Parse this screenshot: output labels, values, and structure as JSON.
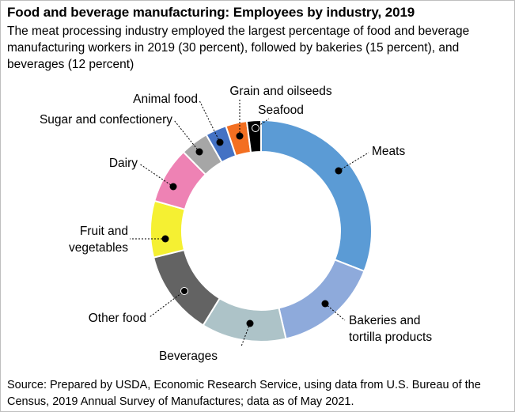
{
  "title": "Food and beverage manufacturing: Employees by industry, 2019",
  "subtitle": "The meat processing industry employed the largest percentage of food and beverage manufacturing workers in 2019 (30 percent), followed by bakeries (15 percent), and beverages (12 percent)",
  "source": "Source: Prepared by USDA, Economic Research Service, using data from U.S. Bureau of the Census, 2019 Annual Survey of Manufactures; data as of May 2021.",
  "chart_data": {
    "type": "pie",
    "style": "donut",
    "unit": "percent",
    "slices": [
      {
        "label": "Meats",
        "value": 30,
        "color": "#5b9bd5",
        "label_lines": [
          "Meats"
        ]
      },
      {
        "label": "Bakeries and tortilla products",
        "value": 15,
        "color": "#8eaadb",
        "label_lines": [
          "Bakeries and",
          "tortilla products"
        ]
      },
      {
        "label": "Beverages",
        "value": 12,
        "color": "#adc3c8",
        "label_lines": [
          "Beverages"
        ]
      },
      {
        "label": "Other food",
        "value": 12,
        "color": "#636363",
        "label_lines": [
          "Other food"
        ]
      },
      {
        "label": "Fruit and vegetables",
        "value": 8,
        "color": "#f5f032",
        "label_lines": [
          "Fruit and",
          "vegetables"
        ]
      },
      {
        "label": "Dairy",
        "value": 8,
        "color": "#ee82b4",
        "label_lines": [
          "Dairy"
        ]
      },
      {
        "label": "Sugar and confectionery",
        "value": 4,
        "color": "#a6a6a6",
        "label_lines": [
          "Sugar and confectionery"
        ]
      },
      {
        "label": "Animal food",
        "value": 3,
        "color": "#4472c4",
        "label_lines": [
          "Animal food"
        ]
      },
      {
        "label": "Grain and oilseeds",
        "value": 3,
        "color": "#f36f21",
        "label_lines": [
          "Grain and oilseeds"
        ]
      },
      {
        "label": "Seafood",
        "value": 2,
        "color": "#000000",
        "label_lines": [
          "Seafood"
        ]
      }
    ]
  }
}
